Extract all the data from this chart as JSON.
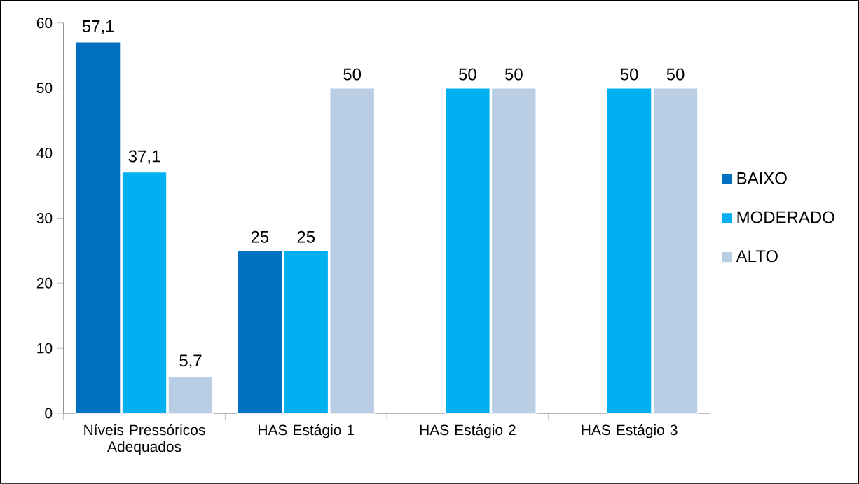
{
  "chart_data": {
    "type": "bar",
    "categories": [
      "Níveis Pressóricos Adequados",
      "HAS Estágio 1",
      "HAS Estágio 2",
      "HAS Estágio 3"
    ],
    "series": [
      {
        "name": "BAIXO",
        "color": "#0070c0",
        "values": [
          57.1,
          25,
          null,
          null
        ],
        "value_labels": [
          "57,1",
          "25",
          null,
          null
        ]
      },
      {
        "name": "MODERADO",
        "color": "#00b0f0",
        "values": [
          37.1,
          25,
          50,
          50
        ],
        "value_labels": [
          "37,1",
          "25",
          "50",
          "50"
        ]
      },
      {
        "name": "ALTO",
        "color": "#b9cde5",
        "values": [
          5.7,
          50,
          50,
          50
        ],
        "value_labels": [
          "5,7",
          "50",
          "50",
          "50"
        ]
      }
    ],
    "ylim": [
      0,
      60
    ],
    "yticks": [
      0,
      10,
      20,
      30,
      40,
      50,
      60
    ],
    "grid": false,
    "legend": "right"
  }
}
